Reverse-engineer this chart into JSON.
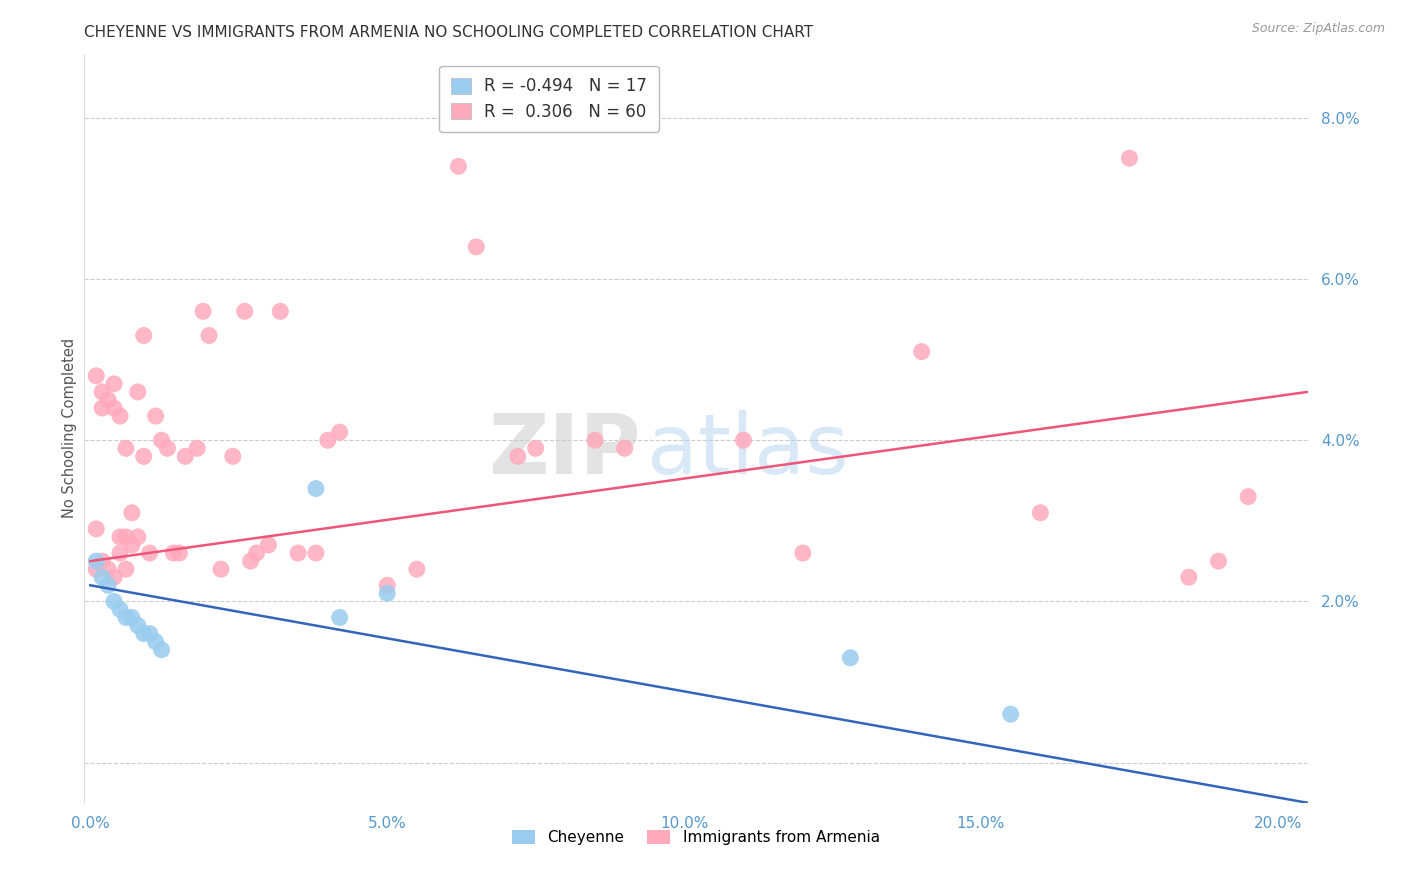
{
  "title": "CHEYENNE VS IMMIGRANTS FROM ARMENIA NO SCHOOLING COMPLETED CORRELATION CHART",
  "source": "Source: ZipAtlas.com",
  "ylabel": "No Schooling Completed",
  "xlim": [
    -0.001,
    0.205
  ],
  "ylim": [
    -0.005,
    0.088
  ],
  "xticks": [
    0.0,
    0.05,
    0.1,
    0.15,
    0.2
  ],
  "yticks_right": [
    0.0,
    0.02,
    0.04,
    0.06,
    0.08
  ],
  "ytick_labels_right": [
    "",
    "2.0%",
    "4.0%",
    "6.0%",
    "8.0%"
  ],
  "xtick_labels": [
    "0.0%",
    "5.0%",
    "10.0%",
    "15.0%",
    "20.0%"
  ],
  "cheyenne_R": -0.494,
  "cheyenne_N": 17,
  "armenia_R": 0.306,
  "armenia_N": 60,
  "cheyenne_color": "#99CCEE",
  "armenia_color": "#FFAABC",
  "cheyenne_line_color": "#3366BB",
  "armenia_line_color": "#EE5577",
  "background_color": "#FFFFFF",
  "cheyenne_x": [
    0.001,
    0.002,
    0.003,
    0.004,
    0.005,
    0.006,
    0.007,
    0.008,
    0.009,
    0.01,
    0.011,
    0.012,
    0.038,
    0.042,
    0.05,
    0.128,
    0.155
  ],
  "cheyenne_y": [
    0.025,
    0.023,
    0.022,
    0.02,
    0.019,
    0.018,
    0.018,
    0.017,
    0.016,
    0.016,
    0.015,
    0.014,
    0.034,
    0.018,
    0.021,
    0.013,
    0.006
  ],
  "armenia_x": [
    0.001,
    0.001,
    0.001,
    0.002,
    0.002,
    0.002,
    0.003,
    0.003,
    0.004,
    0.004,
    0.004,
    0.005,
    0.005,
    0.005,
    0.006,
    0.006,
    0.006,
    0.007,
    0.007,
    0.008,
    0.008,
    0.009,
    0.009,
    0.01,
    0.011,
    0.012,
    0.013,
    0.014,
    0.015,
    0.016,
    0.018,
    0.019,
    0.02,
    0.022,
    0.024,
    0.026,
    0.027,
    0.028,
    0.03,
    0.032,
    0.035,
    0.038,
    0.04,
    0.042,
    0.05,
    0.055,
    0.062,
    0.065,
    0.072,
    0.075,
    0.085,
    0.09,
    0.11,
    0.12,
    0.14,
    0.16,
    0.175,
    0.185,
    0.19,
    0.195
  ],
  "armenia_y": [
    0.048,
    0.029,
    0.024,
    0.046,
    0.044,
    0.025,
    0.045,
    0.024,
    0.047,
    0.044,
    0.023,
    0.043,
    0.028,
    0.026,
    0.028,
    0.039,
    0.024,
    0.031,
    0.027,
    0.046,
    0.028,
    0.053,
    0.038,
    0.026,
    0.043,
    0.04,
    0.039,
    0.026,
    0.026,
    0.038,
    0.039,
    0.056,
    0.053,
    0.024,
    0.038,
    0.056,
    0.025,
    0.026,
    0.027,
    0.056,
    0.026,
    0.026,
    0.04,
    0.041,
    0.022,
    0.024,
    0.074,
    0.064,
    0.038,
    0.039,
    0.04,
    0.039,
    0.04,
    0.026,
    0.051,
    0.031,
    0.075,
    0.023,
    0.025,
    0.033
  ],
  "cheyenne_line_x0": 0.0,
  "cheyenne_line_y0": 0.022,
  "cheyenne_line_x1": 0.205,
  "cheyenne_line_y1": -0.005,
  "armenia_line_x0": 0.0,
  "armenia_line_y0": 0.025,
  "armenia_line_x1": 0.205,
  "armenia_line_y1": 0.046
}
